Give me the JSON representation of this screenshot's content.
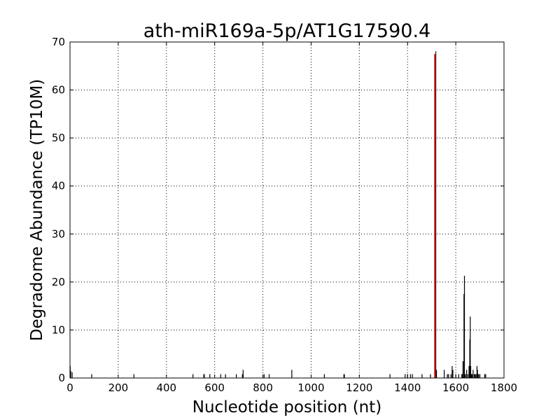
{
  "chart_data": {
    "type": "bar",
    "title": "ath-miR169a-5p/AT1G17590.4",
    "xlabel": "Nucleotide position (nt)",
    "ylabel": "Degradome Abundance (TP10M)",
    "xlim": [
      0,
      1800
    ],
    "ylim": [
      0,
      70
    ],
    "xticks": [
      0,
      200,
      400,
      600,
      800,
      1000,
      1200,
      1400,
      1600,
      1800
    ],
    "yticks": [
      0,
      10,
      20,
      30,
      40,
      50,
      60,
      70
    ],
    "grid": true,
    "highlight_color": "#e41a1c",
    "bar_color": "#000000",
    "highlight": {
      "x": 1513,
      "y": 67.5
    },
    "series": [
      {
        "x": [
          1,
          3,
          9,
          90,
          265,
          510,
          555,
          557,
          580,
          625,
          645,
          690,
          715,
          718,
          805,
          826,
          920,
          1055,
          1136,
          1138,
          1327,
          1390,
          1400,
          1412,
          1420,
          1460,
          1495,
          1520,
          1552,
          1565,
          1570,
          1580,
          1585,
          1588,
          1600,
          1612,
          1625,
          1628,
          1630,
          1634,
          1636,
          1638,
          1640,
          1645,
          1650,
          1655,
          1658,
          1660,
          1662,
          1665,
          1668,
          1672,
          1677,
          1680,
          1684,
          1688,
          1690,
          1692,
          1695,
          1700,
          1720,
          1724
        ],
        "y": [
          2.5,
          1.5,
          1.2,
          0.8,
          0.8,
          0.8,
          0.8,
          0.8,
          0.8,
          0.8,
          0.8,
          0.8,
          0.8,
          1.7,
          0.8,
          0.8,
          1.7,
          0.8,
          0.8,
          0.8,
          0.8,
          0.8,
          0.8,
          0.8,
          0.8,
          0.8,
          0.8,
          1.7,
          1.7,
          0.8,
          0.8,
          0.8,
          2.5,
          1.7,
          0.8,
          0.8,
          0.8,
          0.8,
          3.5,
          17.5,
          21.3,
          0.8,
          0.8,
          1.7,
          0.8,
          2.5,
          8.0,
          12.8,
          2.5,
          0.8,
          0.8,
          1.7,
          0.8,
          0.8,
          0.8,
          2.5,
          1.7,
          0.8,
          0.8,
          0.8,
          0.8,
          0.8
        ]
      }
    ]
  }
}
